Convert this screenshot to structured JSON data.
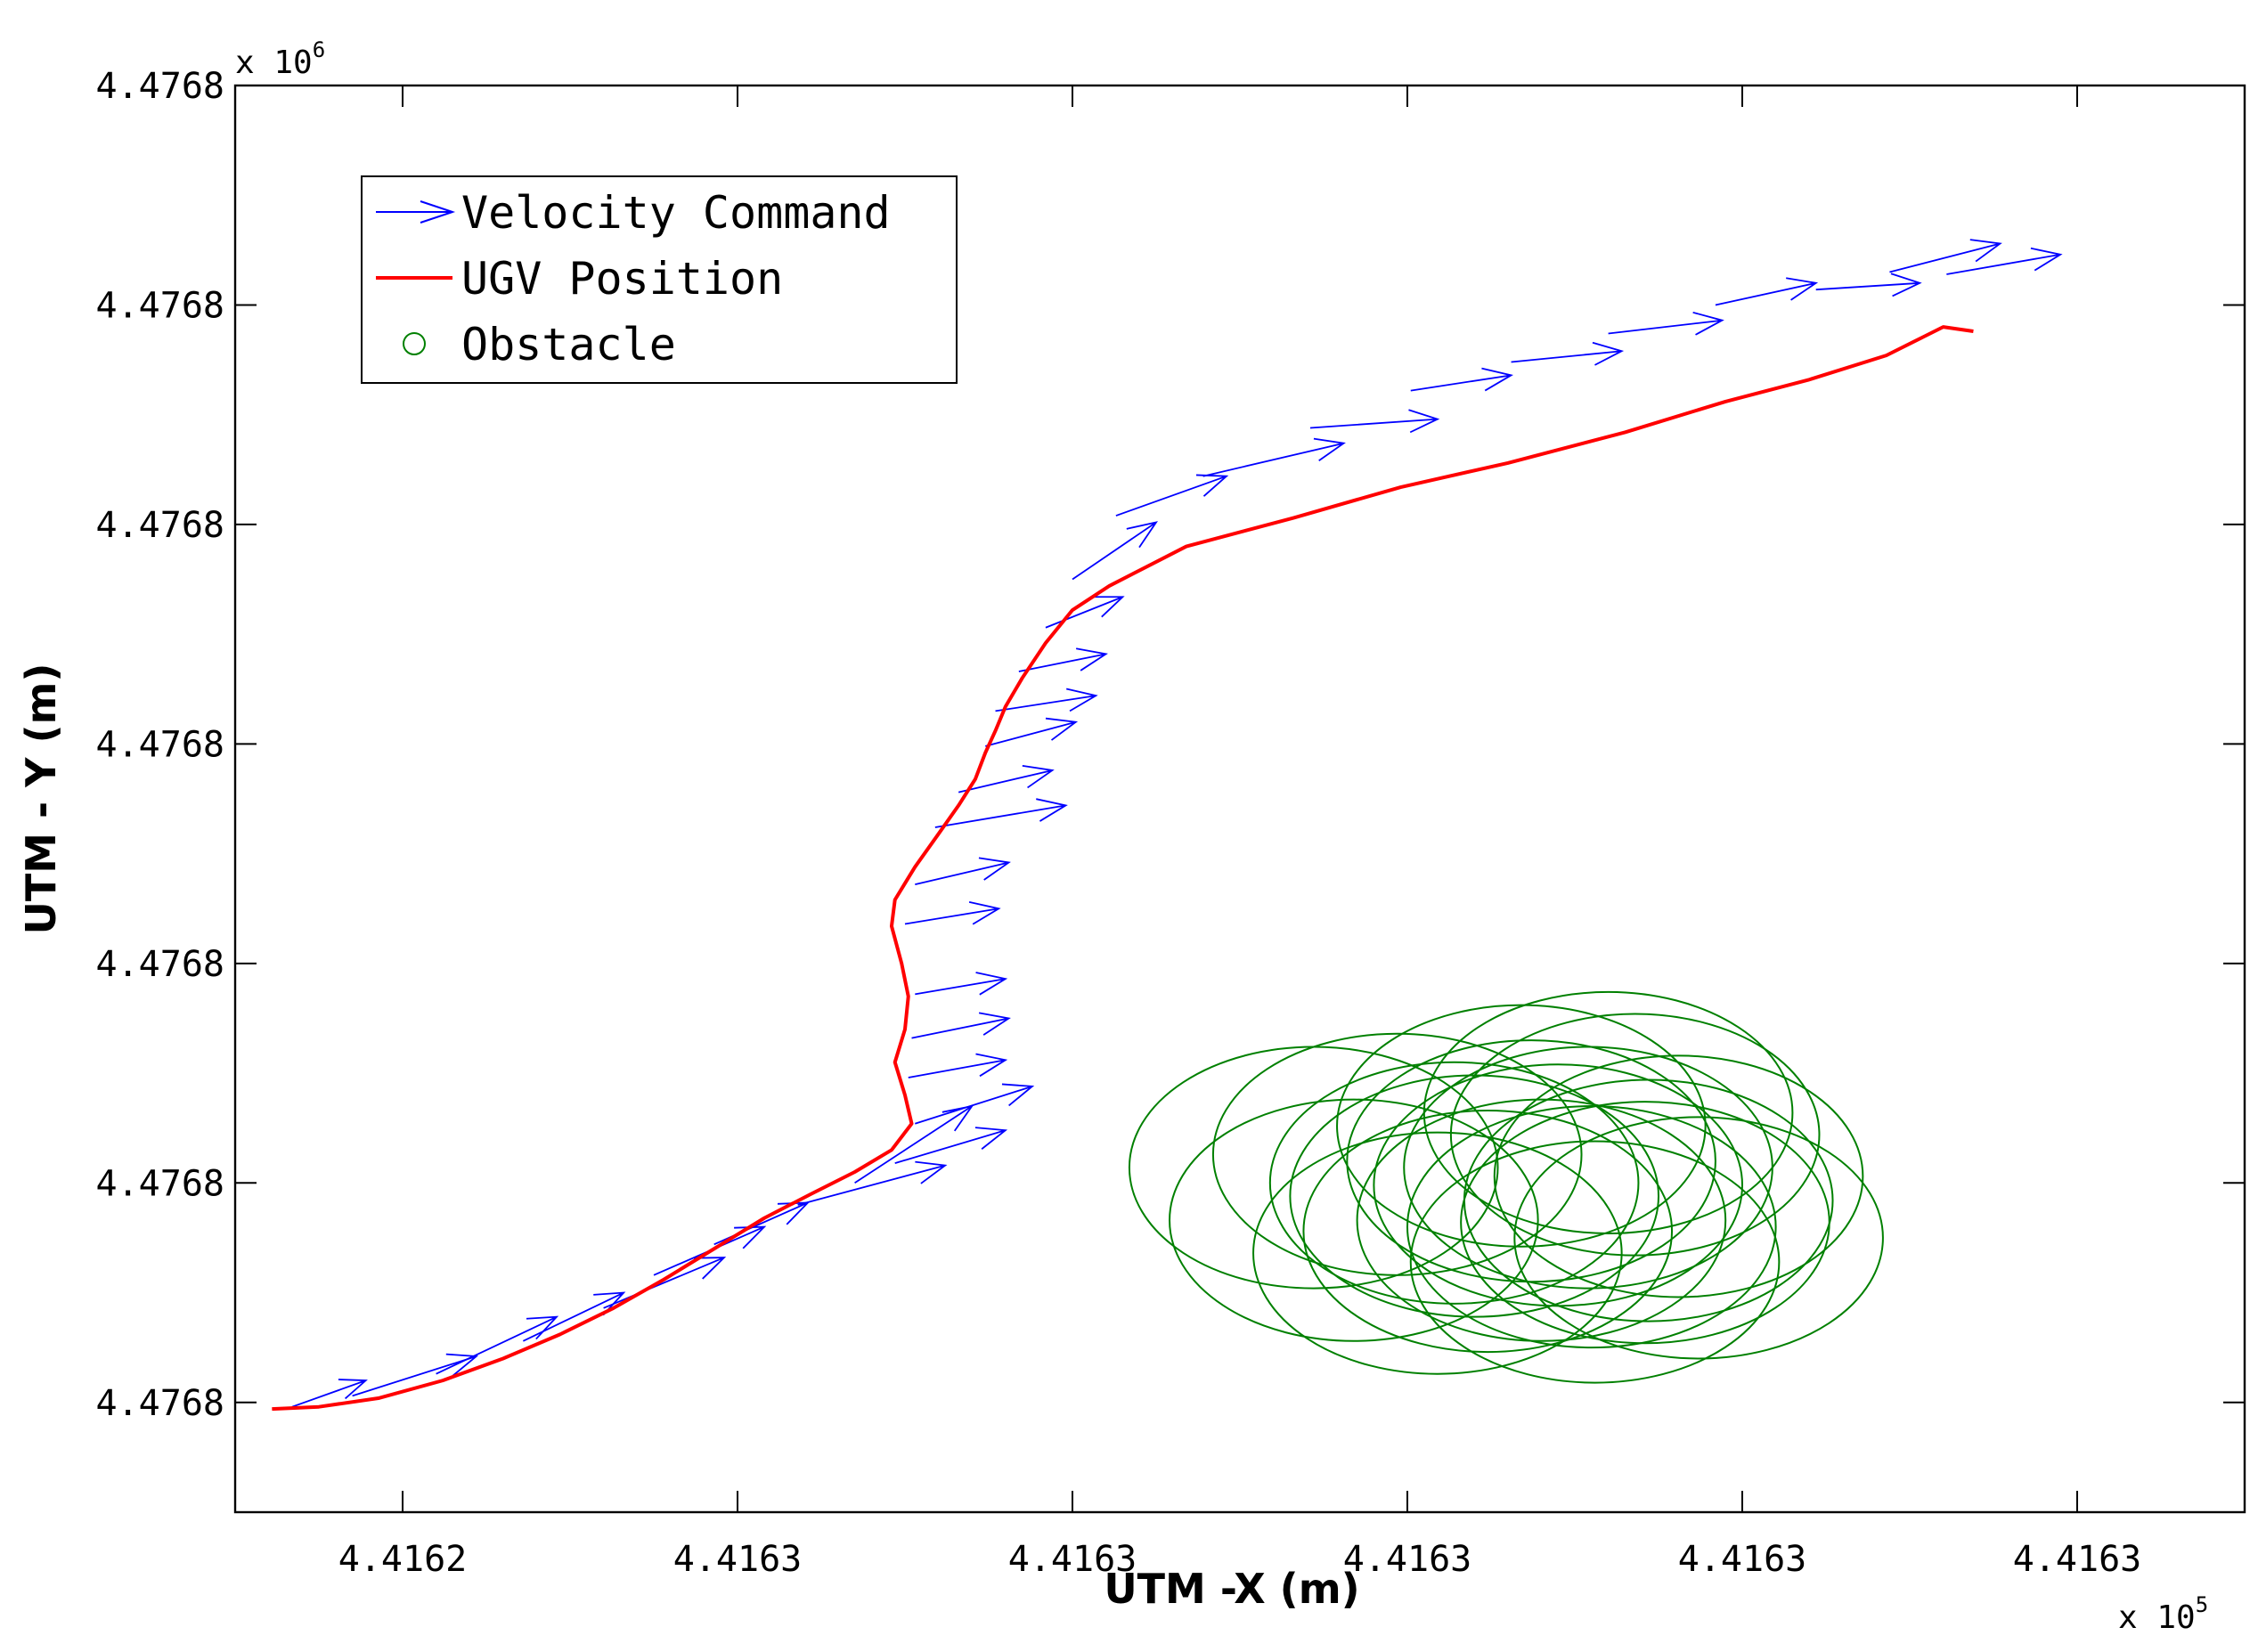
{
  "chart_data": {
    "type": "line",
    "title": "",
    "xlabel": "UTM -X (m)",
    "ylabel": "UTM - Y (m)",
    "x_exponent_base": "x 10",
    "x_exponent_power": "5",
    "y_exponent_base": "x 10",
    "y_exponent_power": "6",
    "xlim": [
      0,
      60
    ],
    "ylim": [
      0,
      65
    ],
    "grid": false,
    "legend_position": "top-left",
    "x_ticks": [
      {
        "value": 5,
        "label": "4.4162"
      },
      {
        "value": 15,
        "label": "4.4163"
      },
      {
        "value": 25,
        "label": "4.4163"
      },
      {
        "value": 35,
        "label": "4.4163"
      },
      {
        "value": 45,
        "label": "4.4163"
      },
      {
        "value": 55,
        "label": "4.4163"
      }
    ],
    "y_ticks": [
      {
        "value": 5,
        "label": "4.4768"
      },
      {
        "value": 15,
        "label": "4.4768"
      },
      {
        "value": 25,
        "label": "4.4768"
      },
      {
        "value": 35,
        "label": "4.4768"
      },
      {
        "value": 45,
        "label": "4.4768"
      },
      {
        "value": 55,
        "label": "4.4768"
      },
      {
        "value": 65,
        "label": "4.4768"
      }
    ],
    "series": [
      {
        "name": "Velocity Command",
        "kind": "quiver",
        "color": "#0000ff",
        "base_points": [
          [
            1.7,
            4.8
          ],
          [
            3.5,
            5.3
          ],
          [
            6.0,
            6.3
          ],
          [
            8.6,
            7.8
          ],
          [
            11.0,
            9.3
          ],
          [
            12.5,
            10.8
          ],
          [
            14.3,
            12.2
          ],
          [
            16.8,
            14.0
          ],
          [
            18.5,
            15.0
          ],
          [
            19.7,
            15.9
          ],
          [
            20.3,
            17.7
          ],
          [
            20.1,
            19.8
          ],
          [
            20.2,
            21.6
          ],
          [
            20.3,
            23.6
          ],
          [
            20.0,
            26.8
          ],
          [
            20.3,
            28.6
          ],
          [
            20.9,
            31.2
          ],
          [
            21.6,
            32.8
          ],
          [
            22.4,
            34.9
          ],
          [
            22.7,
            36.5
          ],
          [
            23.4,
            38.3
          ],
          [
            24.2,
            40.3
          ],
          [
            25.0,
            42.5
          ],
          [
            26.3,
            45.4
          ],
          [
            28.9,
            47.2
          ],
          [
            32.1,
            49.4
          ],
          [
            35.1,
            51.1
          ],
          [
            38.1,
            52.4
          ],
          [
            41.0,
            53.7
          ],
          [
            44.2,
            55.0
          ],
          [
            47.2,
            55.7
          ],
          [
            49.4,
            56.5
          ],
          [
            51.1,
            56.4
          ]
        ],
        "vectors": [
          [
            2.2,
            1.2
          ],
          [
            3.7,
            1.8
          ],
          [
            3.6,
            2.6
          ],
          [
            3.0,
            2.2
          ],
          [
            3.6,
            2.3
          ],
          [
            3.3,
            2.2
          ],
          [
            2.8,
            1.9
          ],
          [
            4.4,
            1.8
          ],
          [
            3.5,
            3.5
          ],
          [
            3.3,
            1.5
          ],
          [
            3.5,
            1.7
          ],
          [
            2.9,
            0.8
          ],
          [
            2.9,
            0.9
          ],
          [
            2.7,
            0.7
          ],
          [
            2.8,
            0.7
          ],
          [
            2.8,
            1.0
          ],
          [
            3.9,
            1.0
          ],
          [
            2.8,
            1.0
          ],
          [
            2.7,
            1.1
          ],
          [
            3.0,
            0.7
          ],
          [
            2.6,
            0.8
          ],
          [
            2.3,
            1.4
          ],
          [
            2.5,
            2.6
          ],
          [
            3.3,
            1.8
          ],
          [
            4.2,
            1.5
          ],
          [
            3.8,
            0.4
          ],
          [
            3.0,
            0.7
          ],
          [
            3.3,
            0.5
          ],
          [
            3.4,
            0.6
          ],
          [
            3.0,
            1.0
          ],
          [
            3.1,
            0.3
          ],
          [
            3.3,
            1.3
          ],
          [
            3.4,
            0.9
          ]
        ]
      },
      {
        "name": "UGV Position",
        "kind": "line",
        "color": "#ff0000",
        "x": [
          1.1,
          2.5,
          4.3,
          6.2,
          8.0,
          9.7,
          11.3,
          12.8,
          14.3,
          15.8,
          17.2,
          18.5,
          19.6,
          20.2,
          20.0,
          19.7,
          20.0,
          20.1,
          19.9,
          19.6,
          19.7,
          20.3,
          21.0,
          21.6,
          22.1,
          22.4,
          22.7,
          23.0,
          23.5,
          24.2,
          25.0,
          26.1,
          28.4,
          31.6,
          34.8,
          38.0,
          41.5,
          44.5,
          47.0,
          49.3,
          51.0,
          51.9
        ],
        "y": [
          4.7,
          4.8,
          5.2,
          6.0,
          7.0,
          8.1,
          9.3,
          10.6,
          12.0,
          13.4,
          14.5,
          15.5,
          16.5,
          17.7,
          19.0,
          20.5,
          22.0,
          23.5,
          25.0,
          26.7,
          27.9,
          29.4,
          30.9,
          32.2,
          33.4,
          34.6,
          35.6,
          36.7,
          38.0,
          39.6,
          41.1,
          42.2,
          44.0,
          45.3,
          46.7,
          47.8,
          49.2,
          50.6,
          51.6,
          52.7,
          54.0,
          53.8
        ]
      },
      {
        "name": "Obstacle",
        "kind": "circles",
        "color": "#008000",
        "radius": 5.5,
        "centers": [
          [
            32.2,
            15.7
          ],
          [
            33.4,
            13.3
          ],
          [
            34.7,
            16.3
          ],
          [
            35.9,
            11.8
          ],
          [
            36.4,
            15.0
          ],
          [
            37.0,
            14.4
          ],
          [
            37.4,
            12.8
          ],
          [
            38.4,
            17.6
          ],
          [
            39.0,
            13.3
          ],
          [
            39.5,
            14.9
          ],
          [
            38.7,
            16.0
          ],
          [
            40.6,
            11.4
          ],
          [
            41.8,
            17.2
          ],
          [
            40.5,
            13.0
          ],
          [
            41.0,
            18.2
          ],
          [
            40.4,
            15.7
          ],
          [
            42.2,
            14.2
          ],
          [
            42.1,
            13.2
          ],
          [
            43.1,
            15.3
          ],
          [
            43.7,
            12.5
          ]
        ]
      }
    ]
  }
}
